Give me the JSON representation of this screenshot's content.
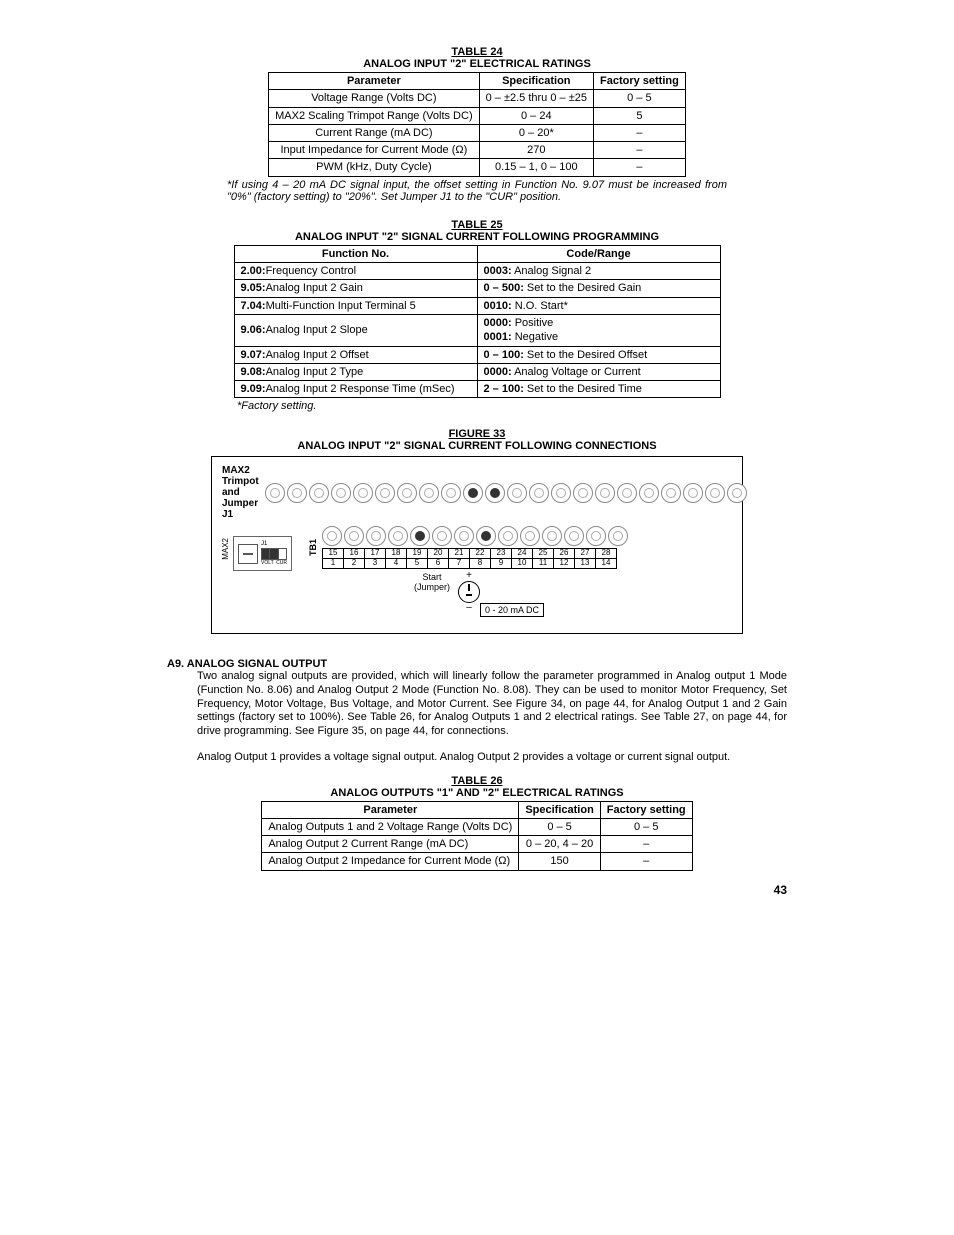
{
  "t24": {
    "title": "TABLE 24",
    "subtitle": "ANALOG INPUT \"2\" ELECTRICAL RATINGS",
    "headers": [
      "Parameter",
      "Specification",
      "Factory setting"
    ],
    "rows": [
      [
        "Voltage Range (Volts DC)",
        "0 – ±2.5 thru 0 – ±25",
        "0 – 5"
      ],
      [
        "MAX2 Scaling Trimpot Range (Volts DC)",
        "0 – 24",
        "5"
      ],
      [
        "Current Range (mA DC)",
        "0 – 20*",
        "–"
      ],
      [
        "Input Impedance for Current Mode (Ω)",
        "270",
        "–"
      ],
      [
        "PWM (kHz, Duty Cycle)",
        "0.15 – 1, 0 – 100",
        "–"
      ]
    ],
    "note": "*If using 4 – 20 mA DC signal input, the offset setting in Function No. 9.07 must be increased from \"0%\" (factory setting) to \"20%\".  Set Jumper J1 to the \"CUR\" position."
  },
  "t25": {
    "title": "TABLE 25",
    "subtitle": "ANALOG INPUT \"2\" SIGNAL CURRENT FOLLOWING PROGRAMMING",
    "headers": [
      "Function No.",
      "Code/Range"
    ],
    "rows": [
      {
        "fn": "2.00:",
        "fndesc": "Frequency Control",
        "code": "0003:",
        "codedesc": " Analog Signal 2"
      },
      {
        "fn": "9.05:",
        "fndesc": "Analog Input 2 Gain",
        "code": "0 – 500:",
        "codedesc": " Set to the Desired Gain"
      },
      {
        "fn": "7.04:",
        "fndesc": "Multi-Function Input Terminal 5",
        "code": "0010:",
        "codedesc": " N.O. Start*"
      },
      {
        "fn": "9.06:",
        "fndesc": "Analog Input 2 Slope",
        "code_html": "<span class=\"b\">0000:</span> Positive<br><span class=\"b\">0001:</span> Negative"
      },
      {
        "fn": "9.07:",
        "fndesc": "Analog Input 2 Offset",
        "code": "0 – 100:",
        "codedesc": " Set to the Desired Offset"
      },
      {
        "fn": "9.08:",
        "fndesc": "Analog Input 2 Type",
        "code": "0000:",
        "codedesc": "  Analog Voltage or Current"
      },
      {
        "fn": "9.09:",
        "fndesc": "Analog Input 2 Response Time (mSec)",
        "code": "2 – 100:",
        "codedesc": " Set to the Desired Time"
      }
    ],
    "footnote": "*Factory setting."
  },
  "fig": {
    "title": "FIGURE 33",
    "subtitle": "ANALOG INPUT \"2\" SIGNAL CURRENT FOLLOWING CONNECTIONS",
    "max2_label": "MAX2 Trimpot\nand Jumper J1",
    "tb1": "TB1",
    "max2_v": "MAX2",
    "j1_top": "J1",
    "j1_a": "VOLT",
    "j1_b": "CUR",
    "start": "Start\n(Jumper)",
    "range": "0 - 20 mA DC",
    "top_terms": 22,
    "top_filled": [
      9,
      10
    ],
    "bot_terms": 14,
    "bot_filled": [
      4,
      7
    ],
    "nums_top": [
      "15",
      "16",
      "17",
      "18",
      "19",
      "20",
      "21",
      "22",
      "23",
      "24",
      "25",
      "26",
      "27",
      "28"
    ],
    "nums_bot": [
      "1",
      "2",
      "3",
      "4",
      "5",
      "6",
      "7",
      "8",
      "9",
      "10",
      "11",
      "12",
      "13",
      "14"
    ]
  },
  "a9": {
    "heading": "A9.   ANALOG SIGNAL OUTPUT",
    "body1": "Two analog signal outputs are provided, which will linearly follow the parameter programmed in Analog output 1 Mode (Function No. 8.06) and Analog Output 2 Mode (Function No. 8.08).  They can be used to monitor Motor Frequency, Set Frequency, Motor Voltage, Bus Voltage, and Motor Current.  See Figure 34, on page 44, for Analog Output 1 and 2 Gain settings (factory set to 100%).  See Table 26, for Analog Outputs 1 and 2 electrical ratings.  See Table 27, on page 44, for drive programming.  See Figure 35, on page 44, for connections.",
    "body2": "Analog Output 1 provides a voltage signal output.  Analog Output 2 provides a voltage or current signal output."
  },
  "t26": {
    "title": "TABLE 26",
    "subtitle": "ANALOG OUTPUTS \"1\" AND \"2\" ELECTRICAL RATINGS",
    "headers": [
      "Parameter",
      "Specification",
      "Factory setting"
    ],
    "rows": [
      [
        "Analog Outputs 1 and 2 Voltage Range (Volts DC)",
        "0 – 5",
        "0 – 5"
      ],
      [
        "Analog Output 2 Current Range (mA DC)",
        "0 – 20, 4 – 20",
        "–"
      ],
      [
        "Analog Output 2 Impedance for Current Mode (Ω)",
        "150",
        "–"
      ]
    ]
  },
  "page_number": "43"
}
